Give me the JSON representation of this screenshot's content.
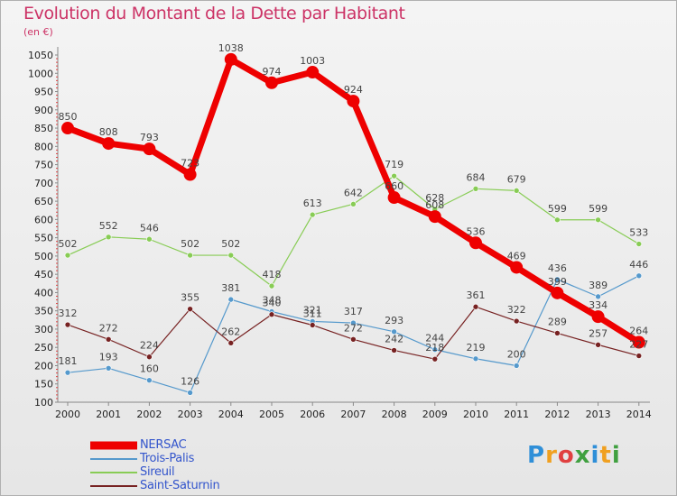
{
  "title": "Evolution du Montant de la Dette par Habitant",
  "subtitle": "(en €)",
  "logo": {
    "text": "Proxiti",
    "colors": [
      "#2f8fd8",
      "#f0a020",
      "#e04040",
      "#40a040",
      "#2f8fd8",
      "#f0a020",
      "#40a040"
    ]
  },
  "chart_data": {
    "type": "line",
    "title": "Evolution du Montant de la Dette par Habitant",
    "subtitle": "(en €)",
    "x": [
      "2000",
      "2001",
      "2002",
      "2003",
      "2004",
      "2005",
      "2006",
      "2007",
      "2008",
      "2009",
      "2010",
      "2011",
      "2012",
      "2013",
      "2014"
    ],
    "y_ticks": [
      "100",
      "150",
      "200",
      "250",
      "300",
      "350",
      "400",
      "450",
      "500",
      "550",
      "600",
      "650",
      "700",
      "750",
      "800",
      "850",
      "900",
      "950",
      "1000",
      "1050"
    ],
    "ylim": [
      100,
      1050
    ],
    "grid": false,
    "legend_position": "bottom-left",
    "series": [
      {
        "name": "NERSAC",
        "color": "#ee0000",
        "width": 7,
        "marker": 7,
        "values": [
          850,
          808,
          793,
          723,
          1038,
          974,
          1003,
          924,
          660,
          608,
          536,
          469,
          399,
          334,
          264
        ],
        "labels": [
          "850",
          "808",
          "793",
          "723",
          "1038",
          "974",
          "1003",
          "924",
          "660",
          "608",
          "536",
          "469",
          "399",
          "334",
          "264"
        ]
      },
      {
        "name": "Trois-Palis",
        "color": "#5599cc",
        "width": 1.2,
        "marker": 3,
        "values": [
          181,
          193,
          160,
          126,
          381,
          348,
          321,
          317,
          293,
          244,
          219,
          200,
          436,
          389,
          446
        ],
        "labels": [
          "181",
          "193",
          "160",
          "126",
          "381",
          "348",
          "321",
          "317",
          "293",
          "244",
          "219",
          "200",
          "436",
          "389",
          "446"
        ]
      },
      {
        "name": "Sireuil",
        "color": "#88cc55",
        "width": 1.2,
        "marker": 3,
        "values": [
          502,
          552,
          546,
          502,
          502,
          418,
          613,
          642,
          719,
          628,
          684,
          679,
          599,
          599,
          533
        ],
        "labels": [
          "502",
          "552",
          "546",
          "502",
          "502",
          "418",
          "613",
          "642",
          "719",
          "628",
          "684",
          "679",
          "599",
          "599",
          "533"
        ]
      },
      {
        "name": "Saint-Saturnin",
        "color": "#772222",
        "width": 1.2,
        "marker": 3,
        "values": [
          312,
          272,
          224,
          355,
          262,
          340,
          311,
          272,
          242,
          218,
          361,
          322,
          289,
          257,
          227
        ],
        "labels": [
          "312",
          "272",
          "224",
          "355",
          "262",
          "340",
          "311",
          "272",
          "242",
          "218",
          "361",
          "322",
          "289",
          "257",
          "227"
        ]
      }
    ]
  }
}
